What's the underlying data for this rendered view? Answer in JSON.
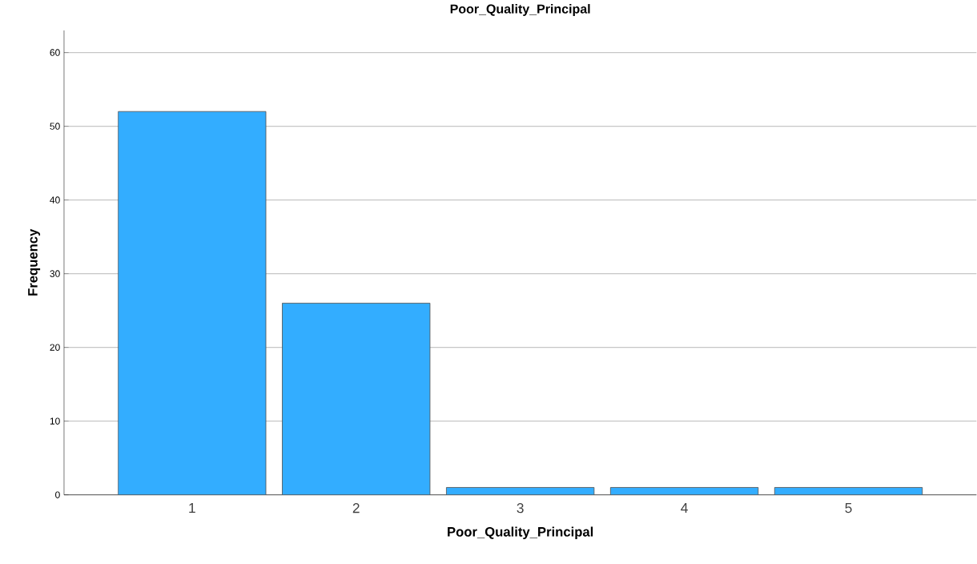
{
  "chart_data": {
    "type": "bar",
    "title": "Poor_Quality_Principal",
    "xlabel": "Poor_Quality_Principal",
    "ylabel": "Frequency",
    "categories": [
      "1",
      "2",
      "3",
      "4",
      "5"
    ],
    "values": [
      52,
      26,
      1,
      1,
      1
    ],
    "color": "#33adff",
    "ylim": [
      0,
      63
    ],
    "yticks": [
      0,
      10,
      20,
      30,
      40,
      50,
      60
    ],
    "grid": "y"
  }
}
